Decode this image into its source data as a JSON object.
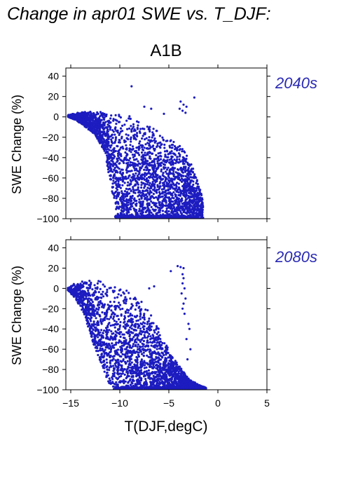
{
  "figure": {
    "title": "Change in apr01 SWE vs. T_DJF:",
    "scenario": "A1B"
  },
  "colors": {
    "points": "#1c1cc0",
    "period_label": "#2a2ab5"
  },
  "chart_data": [
    {
      "type": "scatter",
      "panel_label": "2040s",
      "xlabel": "T(DJF,degC)",
      "ylabel": "SWE Change (%)",
      "xlim": [
        -15.5,
        5
      ],
      "ylim": [
        -100,
        48
      ],
      "xticks": [
        -15,
        -10,
        -5,
        0,
        5
      ],
      "yticks": [
        -100,
        -80,
        -60,
        -40,
        -20,
        0,
        20,
        40
      ],
      "grid": false,
      "series": [
        {
          "envelope": [
            {
              "x": -15.3,
              "y_top": 2,
              "y_bottom": 0
            },
            {
              "x": -14.5,
              "y_top": 4,
              "y_bottom": -3
            },
            {
              "x": -13.5,
              "y_top": 6,
              "y_bottom": -10
            },
            {
              "x": -12.5,
              "y_top": 5,
              "y_bottom": -18
            },
            {
              "x": -11.5,
              "y_top": 5,
              "y_bottom": -35
            },
            {
              "x": -10.8,
              "y_top": 4,
              "y_bottom": -75
            },
            {
              "x": -10.2,
              "y_top": 3,
              "y_bottom": -100
            },
            {
              "x": -9.5,
              "y_top": 2,
              "y_bottom": -100
            },
            {
              "x": -8.5,
              "y_top": 0,
              "y_bottom": -100
            },
            {
              "x": -7.5,
              "y_top": -5,
              "y_bottom": -100
            },
            {
              "x": -6.5,
              "y_top": -10,
              "y_bottom": -100
            },
            {
              "x": -5.5,
              "y_top": -15,
              "y_bottom": -100
            },
            {
              "x": -4.5,
              "y_top": -20,
              "y_bottom": -100
            },
            {
              "x": -3.5,
              "y_top": -30,
              "y_bottom": -100
            },
            {
              "x": -2.5,
              "y_top": -50,
              "y_bottom": -100
            },
            {
              "x": -1.5,
              "y_top": -80,
              "y_bottom": -100
            }
          ],
          "outliers": [
            {
              "x": -8.8,
              "y": 30
            },
            {
              "x": -3.8,
              "y": 15
            },
            {
              "x": -3.5,
              "y": 12
            },
            {
              "x": -3.2,
              "y": 10
            },
            {
              "x": -3.9,
              "y": 8
            },
            {
              "x": -3.6,
              "y": 6
            },
            {
              "x": -3.3,
              "y": 4
            },
            {
              "x": -2.4,
              "y": 19
            },
            {
              "x": -7.5,
              "y": 10
            },
            {
              "x": -6.8,
              "y": 8
            },
            {
              "x": -5.5,
              "y": 3
            }
          ]
        }
      ]
    },
    {
      "type": "scatter",
      "panel_label": "2080s",
      "xlabel": "T(DJF,degC)",
      "ylabel": "SWE Change (%)",
      "xlim": [
        -15.5,
        5
      ],
      "ylim": [
        -100,
        48
      ],
      "xticks": [
        -15,
        -10,
        -5,
        0,
        5
      ],
      "yticks": [
        -100,
        -80,
        -60,
        -40,
        -20,
        0,
        20,
        40
      ],
      "grid": false,
      "series": [
        {
          "envelope": [
            {
              "x": -15.3,
              "y_top": 1,
              "y_bottom": -2
            },
            {
              "x": -14.5,
              "y_top": 6,
              "y_bottom": -10
            },
            {
              "x": -13.5,
              "y_top": 8,
              "y_bottom": -30
            },
            {
              "x": -12.5,
              "y_top": 8,
              "y_bottom": -60
            },
            {
              "x": -11.5,
              "y_top": 7,
              "y_bottom": -85
            },
            {
              "x": -10.8,
              "y_top": 6,
              "y_bottom": -100
            },
            {
              "x": -10.0,
              "y_top": 2,
              "y_bottom": -100
            },
            {
              "x": -9.0,
              "y_top": -3,
              "y_bottom": -100
            },
            {
              "x": -8.0,
              "y_top": -10,
              "y_bottom": -100
            },
            {
              "x": -7.0,
              "y_top": -20,
              "y_bottom": -100
            },
            {
              "x": -6.0,
              "y_top": -40,
              "y_bottom": -100
            },
            {
              "x": -5.0,
              "y_top": -60,
              "y_bottom": -100
            },
            {
              "x": -4.0,
              "y_top": -75,
              "y_bottom": -100
            },
            {
              "x": -3.0,
              "y_top": -88,
              "y_bottom": -100
            },
            {
              "x": -2.0,
              "y_top": -95,
              "y_bottom": -100
            },
            {
              "x": -1.2,
              "y_top": -98,
              "y_bottom": -100
            }
          ],
          "outliers": [
            {
              "x": -4.1,
              "y": 22
            },
            {
              "x": -3.8,
              "y": 21
            },
            {
              "x": -3.5,
              "y": 20
            },
            {
              "x": -4.8,
              "y": 17
            },
            {
              "x": -3.6,
              "y": 14
            },
            {
              "x": -3.5,
              "y": 10
            },
            {
              "x": -3.6,
              "y": 5
            },
            {
              "x": -3.4,
              "y": 0
            },
            {
              "x": -3.7,
              "y": -5
            },
            {
              "x": -3.3,
              "y": -10
            },
            {
              "x": -3.5,
              "y": -15
            },
            {
              "x": -3.6,
              "y": -20
            },
            {
              "x": -3.4,
              "y": -25
            },
            {
              "x": -3.0,
              "y": -35
            },
            {
              "x": -2.9,
              "y": -40
            },
            {
              "x": -3.2,
              "y": -50
            },
            {
              "x": -2.8,
              "y": -60
            },
            {
              "x": -3.1,
              "y": -70
            },
            {
              "x": -6.5,
              "y": 2
            },
            {
              "x": -7.0,
              "y": 0
            }
          ]
        }
      ]
    }
  ]
}
